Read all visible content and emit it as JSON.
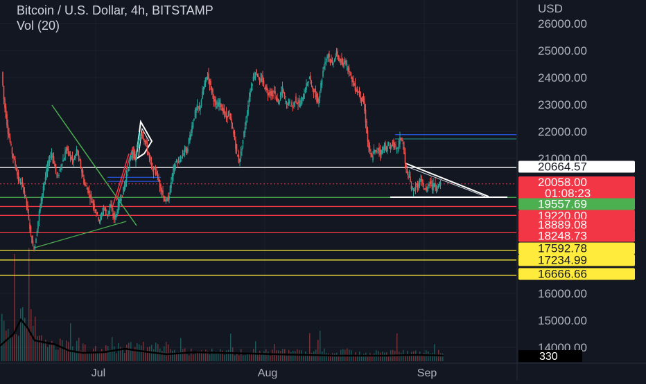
{
  "legend": {
    "title": "Bitcoin / U.S. Dollar, 4h, BITSTAMP",
    "volume": "Vol (20)"
  },
  "axis": {
    "currency": "USD"
  },
  "chart_data": {
    "type": "candlestick",
    "title": "Bitcoin / U.S. Dollar, 4h, BITSTAMP",
    "indicator": "Vol (20)",
    "y_ticks": [
      "26000.00",
      "25000.00",
      "24000.00",
      "23000.00",
      "22000.00",
      "21000.00",
      "16000.00",
      "15000.00",
      "14000.00"
    ],
    "x_ticks": [
      "Jul",
      "Aug",
      "Sep"
    ],
    "ylim": [
      13300,
      26600
    ],
    "price_labels": [
      {
        "value": 20664.57,
        "text": "20664.57",
        "bg": "#ffffff",
        "fg": "#131722"
      },
      {
        "value": 20058.0,
        "text": "20058.00",
        "bg": "#f23645",
        "fg": "#ffffff"
      },
      {
        "value": 19557.69,
        "text": "19557.69",
        "bg": "#4caf50",
        "fg": "#ffffff"
      },
      {
        "value": 19220.0,
        "text": "19220.00",
        "bg": "#f23645",
        "fg": "#ffffff"
      },
      {
        "value": 18889.08,
        "text": "18889.08",
        "bg": "#f23645",
        "fg": "#ffffff"
      },
      {
        "value": 18248.73,
        "text": "18248.73",
        "bg": "#f23645",
        "fg": "#ffffff"
      },
      {
        "value": 17592.78,
        "text": "17592.78",
        "bg": "#ffeb3b",
        "fg": "#131722"
      },
      {
        "value": 17234.99,
        "text": "17234.99",
        "bg": "#ffeb3b",
        "fg": "#131722"
      },
      {
        "value": 16666.66,
        "text": "16666.66",
        "bg": "#ffeb3b",
        "fg": "#131722"
      }
    ],
    "countdown": "01:08:23",
    "volume_label": "330",
    "horizontal_lines": [
      {
        "value": 20664.57,
        "color": "#ffffff"
      },
      {
        "value": 19557.69,
        "color": "#4caf50"
      },
      {
        "value": 19220.0,
        "color": "#f23645"
      },
      {
        "value": 18889.08,
        "color": "#f23645"
      },
      {
        "value": 18248.73,
        "color": "#f23645"
      },
      {
        "value": 17592.78,
        "color": "#ffeb3b"
      },
      {
        "value": 17234.99,
        "color": "#ffeb3b"
      },
      {
        "value": 16666.66,
        "color": "#ffeb3b"
      }
    ],
    "price_path": [
      [
        0,
        24200
      ],
      [
        3,
        23200
      ],
      [
        6,
        22600
      ],
      [
        9,
        22000
      ],
      [
        12,
        21600
      ],
      [
        15,
        21200
      ],
      [
        18,
        20900
      ],
      [
        21,
        20600
      ],
      [
        24,
        20200
      ],
      [
        27,
        20100
      ],
      [
        30,
        20000
      ],
      [
        33,
        19700
      ],
      [
        36,
        19300
      ],
      [
        39,
        18700
      ],
      [
        42,
        18200
      ],
      [
        45,
        17700
      ],
      [
        48,
        17800
      ],
      [
        51,
        18400
      ],
      [
        54,
        19000
      ],
      [
        57,
        19500
      ],
      [
        60,
        20000
      ],
      [
        63,
        20300
      ],
      [
        66,
        20700
      ],
      [
        69,
        21000
      ],
      [
        72,
        21200
      ],
      [
        75,
        20900
      ],
      [
        78,
        20500
      ],
      [
        81,
        20300
      ],
      [
        84,
        20600
      ],
      [
        87,
        20900
      ],
      [
        90,
        21000
      ],
      [
        93,
        21400
      ],
      [
        96,
        21200
      ],
      [
        99,
        21100
      ],
      [
        102,
        20900
      ],
      [
        105,
        21000
      ],
      [
        108,
        21300
      ],
      [
        111,
        21000
      ],
      [
        114,
        20700
      ],
      [
        117,
        20300
      ],
      [
        120,
        20000
      ],
      [
        123,
        19900
      ],
      [
        126,
        19700
      ],
      [
        129,
        19500
      ],
      [
        132,
        19300
      ],
      [
        135,
        19100
      ],
      [
        138,
        18900
      ],
      [
        141,
        18700
      ],
      [
        144,
        18900
      ],
      [
        147,
        19200
      ],
      [
        150,
        19000
      ],
      [
        153,
        18900
      ],
      [
        156,
        19300
      ],
      [
        159,
        19000
      ],
      [
        162,
        18800
      ],
      [
        165,
        18900
      ],
      [
        168,
        19300
      ],
      [
        171,
        19500
      ],
      [
        174,
        19700
      ],
      [
        177,
        20000
      ],
      [
        180,
        20400
      ],
      [
        183,
        20700
      ],
      [
        186,
        21000
      ],
      [
        189,
        21300
      ],
      [
        192,
        20900
      ],
      [
        195,
        21300
      ],
      [
        198,
        21700
      ],
      [
        201,
        22000
      ],
      [
        204,
        21800
      ],
      [
        207,
        21600
      ],
      [
        210,
        21300
      ],
      [
        213,
        21000
      ],
      [
        216,
        20700
      ],
      [
        219,
        20500
      ],
      [
        222,
        20600
      ],
      [
        225,
        20300
      ],
      [
        228,
        20000
      ],
      [
        231,
        19800
      ],
      [
        234,
        19500
      ],
      [
        237,
        19400
      ],
      [
        240,
        19500
      ],
      [
        243,
        19900
      ],
      [
        246,
        20400
      ],
      [
        249,
        20700
      ],
      [
        252,
        20900
      ],
      [
        255,
        20800
      ],
      [
        258,
        21000
      ],
      [
        261,
        21100
      ],
      [
        264,
        21400
      ],
      [
        267,
        21200
      ],
      [
        270,
        21700
      ],
      [
        273,
        22000
      ],
      [
        276,
        22400
      ],
      [
        279,
        22700
      ],
      [
        282,
        22900
      ],
      [
        285,
        22800
      ],
      [
        288,
        23200
      ],
      [
        291,
        23600
      ],
      [
        294,
        23900
      ],
      [
        297,
        24100
      ],
      [
        300,
        23800
      ],
      [
        303,
        23500
      ],
      [
        306,
        23200
      ],
      [
        309,
        22900
      ],
      [
        312,
        23000
      ],
      [
        315,
        23100
      ],
      [
        318,
        22800
      ],
      [
        321,
        22700
      ],
      [
        324,
        22500
      ],
      [
        327,
        22700
      ],
      [
        330,
        22400
      ],
      [
        333,
        22100
      ],
      [
        336,
        21700
      ],
      [
        339,
        21200
      ],
      [
        342,
        20900
      ],
      [
        345,
        21200
      ],
      [
        348,
        21700
      ],
      [
        351,
        22200
      ],
      [
        354,
        22700
      ],
      [
        357,
        23300
      ],
      [
        360,
        23700
      ],
      [
        363,
        24000
      ],
      [
        366,
        24200
      ],
      [
        369,
        24100
      ],
      [
        372,
        23800
      ],
      [
        375,
        24000
      ],
      [
        378,
        23700
      ],
      [
        381,
        23600
      ],
      [
        384,
        23400
      ],
      [
        387,
        23500
      ],
      [
        390,
        23300
      ],
      [
        393,
        23500
      ],
      [
        396,
        23200
      ],
      [
        399,
        23100
      ],
      [
        402,
        23300
      ],
      [
        405,
        23600
      ],
      [
        408,
        23200
      ],
      [
        411,
        23000
      ],
      [
        414,
        23100
      ],
      [
        417,
        23000
      ],
      [
        420,
        22900
      ],
      [
        423,
        23200
      ],
      [
        426,
        23100
      ],
      [
        429,
        23000
      ],
      [
        432,
        23100
      ],
      [
        435,
        23300
      ],
      [
        438,
        23600
      ],
      [
        441,
        23800
      ],
      [
        444,
        24000
      ],
      [
        447,
        23700
      ],
      [
        450,
        23500
      ],
      [
        453,
        23300
      ],
      [
        456,
        23100
      ],
      [
        459,
        23500
      ],
      [
        462,
        24000
      ],
      [
        465,
        24500
      ],
      [
        468,
        24700
      ],
      [
        471,
        24900
      ],
      [
        474,
        24600
      ],
      [
        477,
        24500
      ],
      [
        480,
        24700
      ],
      [
        483,
        24900
      ],
      [
        486,
        24700
      ],
      [
        489,
        24600
      ],
      [
        492,
        24400
      ],
      [
        495,
        24700
      ],
      [
        498,
        24400
      ],
      [
        501,
        24300
      ],
      [
        504,
        24000
      ],
      [
        507,
        23800
      ],
      [
        510,
        23600
      ],
      [
        513,
        23500
      ],
      [
        516,
        23400
      ],
      [
        519,
        23200
      ],
      [
        522,
        23100
      ],
      [
        525,
        22400
      ],
      [
        528,
        21600
      ],
      [
        531,
        21200
      ],
      [
        534,
        21000
      ],
      [
        537,
        21300
      ],
      [
        540,
        21200
      ],
      [
        543,
        21400
      ],
      [
        546,
        21200
      ],
      [
        549,
        21300
      ],
      [
        552,
        21500
      ],
      [
        555,
        21300
      ],
      [
        558,
        21500
      ],
      [
        561,
        21400
      ],
      [
        564,
        21600
      ],
      [
        567,
        21400
      ],
      [
        570,
        21300
      ],
      [
        573,
        21600
      ],
      [
        576,
        21800
      ],
      [
        579,
        21500
      ],
      [
        582,
        20800
      ],
      [
        585,
        20400
      ],
      [
        588,
        20300
      ],
      [
        591,
        19900
      ],
      [
        594,
        19800
      ],
      [
        597,
        20000
      ],
      [
        600,
        19900
      ],
      [
        603,
        20200
      ],
      [
        606,
        20100
      ],
      [
        609,
        19900
      ],
      [
        612,
        19800
      ],
      [
        615,
        20000
      ],
      [
        618,
        20200
      ],
      [
        621,
        19900
      ],
      [
        624,
        20100
      ],
      [
        627,
        19900
      ],
      [
        630,
        20000
      ],
      [
        633,
        20058
      ]
    ],
    "volume_avg_path": [
      [
        0,
        0.22
      ],
      [
        20,
        0.4
      ],
      [
        30,
        0.6
      ],
      [
        40,
        0.48
      ],
      [
        50,
        0.3
      ],
      [
        60,
        0.28
      ],
      [
        80,
        0.24
      ],
      [
        100,
        0.15
      ],
      [
        120,
        0.12
      ],
      [
        150,
        0.13
      ],
      [
        180,
        0.18
      ],
      [
        200,
        0.15
      ],
      [
        240,
        0.1
      ],
      [
        280,
        0.13
      ],
      [
        320,
        0.12
      ],
      [
        360,
        0.11
      ],
      [
        400,
        0.1
      ],
      [
        440,
        0.09
      ],
      [
        480,
        0.08
      ],
      [
        520,
        0.08
      ],
      [
        560,
        0.08
      ],
      [
        600,
        0.09
      ],
      [
        640,
        0.08
      ]
    ]
  }
}
